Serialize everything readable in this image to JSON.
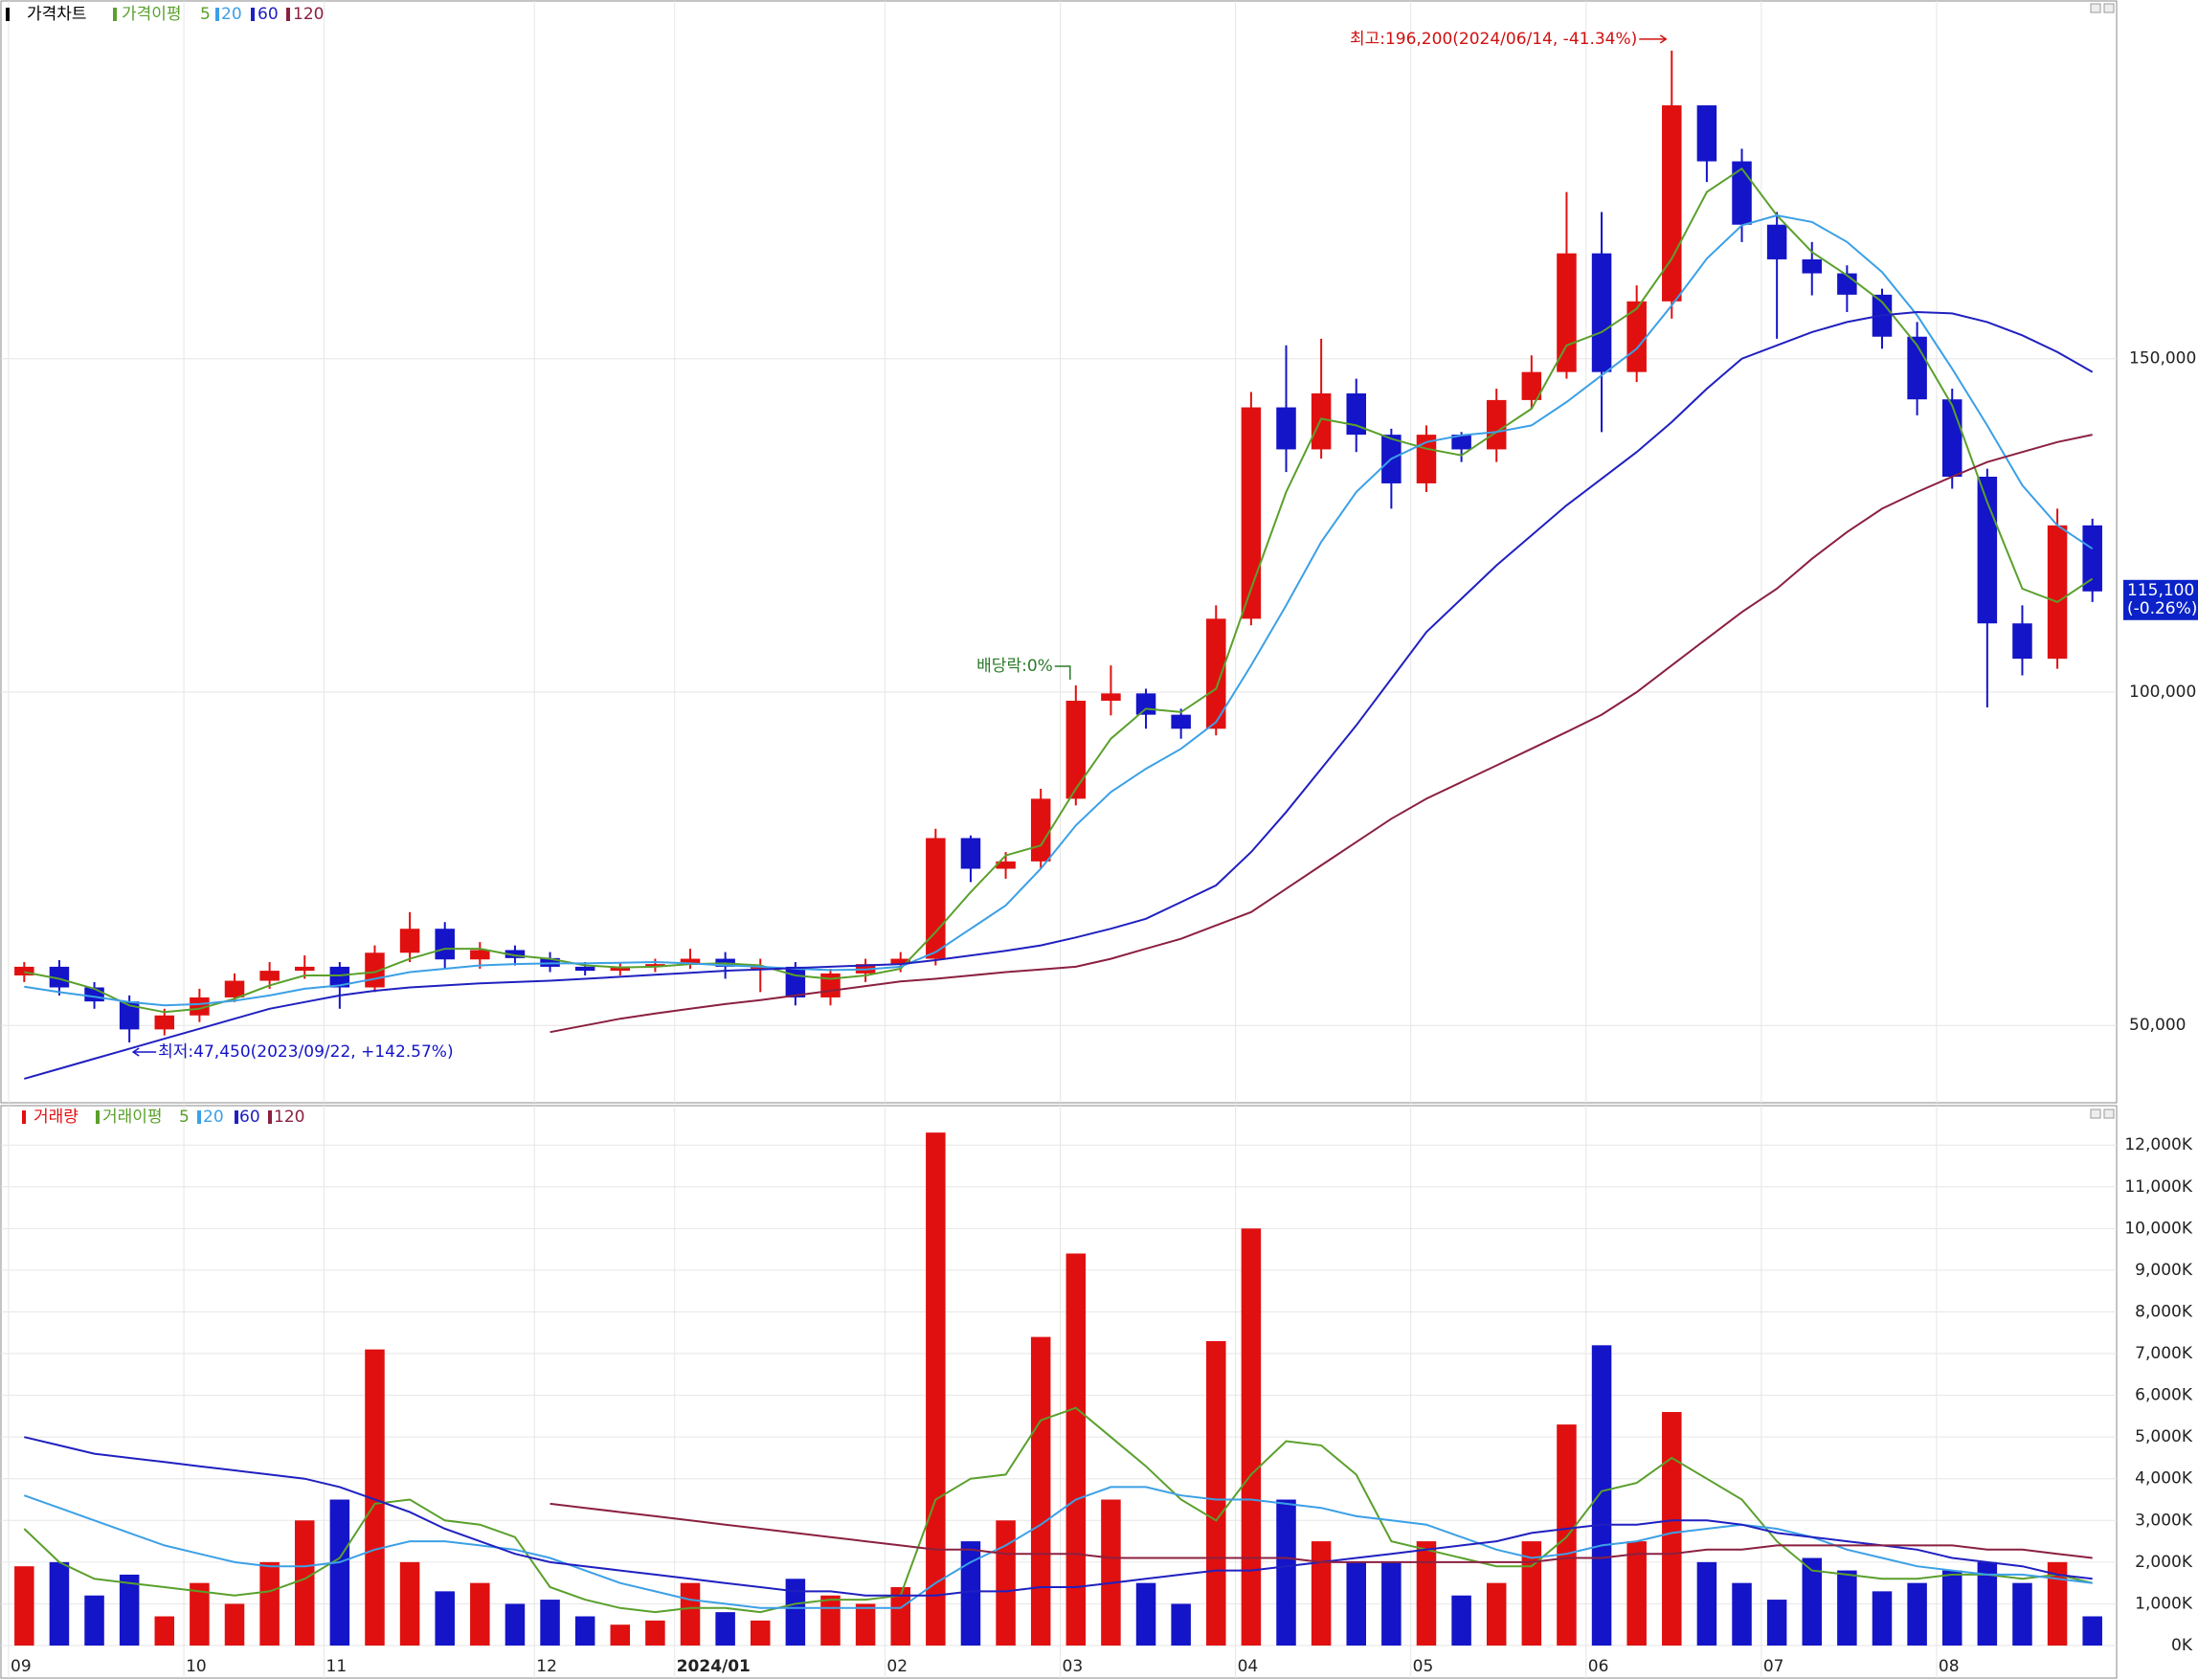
{
  "chart_data": [
    {
      "type": "candlestick",
      "title": "가격차트",
      "ma_label": "가격이평",
      "up_color": "#e01010",
      "down_color": "#1414c8",
      "categories": [
        "09",
        null,
        null,
        null,
        null,
        "10",
        null,
        null,
        null,
        "11",
        null,
        null,
        null,
        null,
        null,
        "12",
        null,
        null,
        null,
        "2024/01",
        null,
        null,
        null,
        null,
        null,
        "02",
        null,
        null,
        null,
        null,
        "03",
        null,
        null,
        null,
        null,
        "04",
        null,
        null,
        null,
        null,
        "05",
        null,
        null,
        null,
        null,
        "06",
        null,
        null,
        null,
        null,
        "07",
        null,
        null,
        null,
        null,
        "08",
        null,
        null,
        null,
        null
      ],
      "open": [
        57500,
        58800,
        55700,
        53600,
        49400,
        51500,
        54200,
        56700,
        58200,
        58800,
        55700,
        60900,
        64500,
        59900,
        61300,
        60100,
        58800,
        58200,
        58800,
        59200,
        60000,
        58800,
        58800,
        54200,
        57800,
        59200,
        60000,
        78100,
        73500,
        74600,
        84000,
        98700,
        99800,
        96600,
        94500,
        111000,
        142700,
        136400,
        144800,
        138600,
        131300,
        138600,
        136400,
        143800,
        148000,
        165800,
        148000,
        158600,
        188000,
        179600,
        170100,
        164900,
        162800,
        159600,
        153300,
        143900,
        132300,
        110300,
        105000,
        125000
      ],
      "high": [
        59500,
        59800,
        56500,
        54500,
        52500,
        55500,
        57800,
        59500,
        60500,
        59500,
        62000,
        67000,
        65500,
        62500,
        62000,
        61000,
        59500,
        59500,
        60000,
        61500,
        61000,
        60000,
        59500,
        58500,
        60000,
        61000,
        79500,
        78500,
        76000,
        85500,
        101000,
        104000,
        100500,
        97500,
        113000,
        145000,
        152000,
        153000,
        147000,
        139500,
        140000,
        139000,
        145500,
        150500,
        175000,
        172000,
        161000,
        196200,
        188000,
        181500,
        172000,
        167500,
        164000,
        160500,
        155500,
        145500,
        133500,
        113000,
        127500,
        126000
      ],
      "low": [
        56500,
        54500,
        52500,
        47450,
        48500,
        50500,
        53500,
        55500,
        57000,
        52500,
        55000,
        59500,
        58500,
        58500,
        59000,
        58000,
        57500,
        57500,
        58000,
        58500,
        57000,
        55000,
        53000,
        53000,
        56500,
        58000,
        59000,
        71500,
        72000,
        73500,
        83000,
        96500,
        94500,
        93000,
        93500,
        110000,
        133000,
        135000,
        136000,
        127500,
        130000,
        134500,
        134500,
        142500,
        147000,
        139000,
        146500,
        156000,
        176500,
        167500,
        153000,
        159500,
        157000,
        151500,
        141500,
        130500,
        97700,
        102500,
        103500,
        113500
      ],
      "close": [
        58800,
        55700,
        53600,
        49400,
        51500,
        54200,
        56700,
        58200,
        58800,
        55700,
        60900,
        64500,
        59900,
        61300,
        60100,
        58800,
        58200,
        58800,
        59200,
        60000,
        58800,
        58800,
        54200,
        57800,
        59200,
        60000,
        78100,
        73500,
        74600,
        84000,
        98700,
        99800,
        96600,
        94500,
        111000,
        142700,
        136400,
        144800,
        138600,
        131300,
        138600,
        136400,
        143800,
        148000,
        165800,
        148000,
        158600,
        188000,
        179600,
        170100,
        164900,
        162800,
        159600,
        153300,
        143900,
        132300,
        110300,
        105000,
        125000,
        115100
      ],
      "series": [
        {
          "name": "5",
          "color": "#5aa02c",
          "values": [
            58000,
            57000,
            55500,
            53000,
            52000,
            52500,
            54000,
            56000,
            57500,
            57500,
            58000,
            60000,
            61500,
            61500,
            60500,
            60000,
            59000,
            58700,
            58800,
            59200,
            59300,
            59000,
            57500,
            57000,
            57500,
            58500,
            64000,
            70000,
            75500,
            77000,
            85500,
            93000,
            97500,
            97000,
            100500,
            115500,
            130000,
            141000,
            140000,
            138000,
            136500,
            135500,
            139000,
            142500,
            152000,
            154000,
            157500,
            165000,
            175000,
            178500,
            171500,
            166000,
            162500,
            158500,
            152000,
            143000,
            128500,
            115500,
            113500,
            117000
          ]
        },
        {
          "name": "20",
          "color": "#3ca0e6",
          "values": [
            55800,
            55000,
            54300,
            53500,
            53000,
            53200,
            53700,
            54500,
            55500,
            56000,
            57000,
            58000,
            58500,
            59000,
            59200,
            59300,
            59300,
            59400,
            59500,
            59300,
            59000,
            58800,
            58500,
            58300,
            58400,
            58800,
            61000,
            64500,
            68000,
            73500,
            80000,
            85000,
            88500,
            91500,
            95500,
            104000,
            113000,
            122500,
            130000,
            135000,
            137500,
            138500,
            139000,
            140000,
            143500,
            147500,
            151500,
            158000,
            165000,
            170000,
            171500,
            170500,
            167500,
            163000,
            156500,
            148500,
            140000,
            131000,
            125000,
            121500
          ]
        },
        {
          "name": "60",
          "color": "#2020c0",
          "values": [
            42000,
            43500,
            45000,
            46500,
            48000,
            49500,
            51000,
            52500,
            53500,
            54500,
            55200,
            55700,
            56000,
            56300,
            56500,
            56700,
            57000,
            57300,
            57600,
            57900,
            58200,
            58400,
            58600,
            58800,
            59000,
            59200,
            59800,
            60500,
            61200,
            62000,
            63200,
            64500,
            66000,
            68500,
            71000,
            76000,
            82000,
            88500,
            95000,
            102000,
            109000,
            114000,
            119000,
            123500,
            128000,
            132000,
            136000,
            140500,
            145500,
            150000,
            152000,
            154000,
            155500,
            156500,
            157000,
            156800,
            155500,
            153500,
            151000,
            148000
          ]
        },
        {
          "name": "120",
          "color": "#8b2040",
          "values": [
            null,
            null,
            null,
            null,
            null,
            null,
            null,
            null,
            null,
            null,
            null,
            null,
            null,
            null,
            null,
            49000,
            50000,
            51000,
            51800,
            52500,
            53200,
            53800,
            54500,
            55200,
            55900,
            56600,
            57000,
            57500,
            58000,
            58400,
            58800,
            60000,
            61500,
            63000,
            65000,
            67000,
            70500,
            74000,
            77500,
            81000,
            84000,
            86500,
            89000,
            91500,
            94000,
            96600,
            100000,
            104000,
            108000,
            112000,
            115500,
            120000,
            124000,
            127500,
            130000,
            132300,
            134500,
            136000,
            137500,
            138600
          ]
        }
      ],
      "ylim": [
        38400,
        203800
      ],
      "yticks": [
        {
          "value": 50000,
          "label": "50,000"
        },
        {
          "value": 100000,
          "label": "100,000"
        },
        {
          "value": 150000,
          "label": "150,000"
        }
      ],
      "grid": true,
      "high_note": "최고:196,200(2024/06/14, -41.34%)",
      "low_note": "최저:47,450(2023/09/22, +142.57%)",
      "ex_dividend_note": "배당락:0%",
      "last_price_label": "115,100",
      "last_change_label": "(-0.26%)"
    },
    {
      "type": "bar",
      "title": "거래량",
      "ma_label": "거래이평",
      "up_color": "#e01010",
      "down_color": "#1414c8",
      "values": [
        1900,
        2000,
        1200,
        1700,
        700,
        1500,
        1000,
        2000,
        3000,
        3500,
        7100,
        2000,
        1300,
        1500,
        1000,
        1100,
        700,
        500,
        600,
        1500,
        800,
        600,
        1600,
        1200,
        1000,
        1400,
        12300,
        2500,
        3000,
        7400,
        9400,
        3500,
        1500,
        1000,
        7300,
        10000,
        3500,
        2500,
        2000,
        2000,
        2500,
        1200,
        1500,
        2500,
        5300,
        7200,
        2500,
        5600,
        2000,
        1500,
        1100,
        2100,
        1800,
        1300,
        1500,
        1800,
        2000,
        1500,
        2000,
        700
      ],
      "series": [
        {
          "name": "5",
          "color": "#5aa02c",
          "values": [
            2800,
            2000,
            1600,
            1500,
            1400,
            1300,
            1200,
            1300,
            1600,
            2100,
            3400,
            3500,
            3000,
            2900,
            2600,
            1400,
            1100,
            900,
            800,
            900,
            900,
            800,
            1000,
            1100,
            1100,
            1200,
            3500,
            4000,
            4100,
            5400,
            5700,
            5000,
            4300,
            3500,
            3000,
            4100,
            4900,
            4800,
            4100,
            2500,
            2300,
            2100,
            1900,
            1900,
            2600,
            3700,
            3900,
            4500,
            4000,
            3500,
            2500,
            1800,
            1700,
            1600,
            1600,
            1700,
            1700,
            1600,
            1700,
            1500
          ]
        },
        {
          "name": "20",
          "color": "#3ca0e6",
          "values": [
            3600,
            3300,
            3000,
            2700,
            2400,
            2200,
            2000,
            1900,
            1900,
            2000,
            2300,
            2500,
            2500,
            2400,
            2300,
            2100,
            1800,
            1500,
            1300,
            1100,
            1000,
            900,
            900,
            900,
            900,
            900,
            1500,
            2000,
            2400,
            2900,
            3500,
            3800,
            3800,
            3600,
            3500,
            3500,
            3400,
            3300,
            3100,
            3000,
            2900,
            2600,
            2300,
            2100,
            2200,
            2400,
            2500,
            2700,
            2800,
            2900,
            2800,
            2600,
            2300,
            2100,
            1900,
            1800,
            1700,
            1700,
            1600,
            1500
          ]
        },
        {
          "name": "60",
          "color": "#2020c0",
          "values": [
            5000,
            4800,
            4600,
            4500,
            4400,
            4300,
            4200,
            4100,
            4000,
            3800,
            3500,
            3200,
            2800,
            2500,
            2200,
            2000,
            1900,
            1800,
            1700,
            1600,
            1500,
            1400,
            1300,
            1300,
            1200,
            1200,
            1200,
            1300,
            1300,
            1400,
            1400,
            1500,
            1600,
            1700,
            1800,
            1800,
            1900,
            2000,
            2100,
            2200,
            2300,
            2400,
            2500,
            2700,
            2800,
            2900,
            2900,
            3000,
            3000,
            2900,
            2700,
            2600,
            2500,
            2400,
            2300,
            2100,
            2000,
            1900,
            1700,
            1600
          ]
        },
        {
          "name": "120",
          "color": "#8b2040",
          "values": [
            null,
            null,
            null,
            null,
            null,
            null,
            null,
            null,
            null,
            null,
            null,
            null,
            null,
            null,
            null,
            3400,
            3300,
            3200,
            3100,
            3000,
            2900,
            2800,
            2700,
            2600,
            2500,
            2400,
            2300,
            2300,
            2200,
            2200,
            2200,
            2100,
            2100,
            2100,
            2100,
            2100,
            2100,
            2000,
            2000,
            2000,
            2000,
            2000,
            2000,
            2000,
            2100,
            2100,
            2200,
            2200,
            2300,
            2300,
            2400,
            2400,
            2400,
            2400,
            2400,
            2400,
            2300,
            2300,
            2200,
            2100
          ]
        }
      ],
      "ylim": [
        0,
        12900
      ],
      "yticks": [
        {
          "value": 0,
          "label": "0K"
        },
        {
          "value": 1000,
          "label": "1,000K"
        },
        {
          "value": 2000,
          "label": "2,000K"
        },
        {
          "value": 3000,
          "label": "3,000K"
        },
        {
          "value": 4000,
          "label": "4,000K"
        },
        {
          "value": 5000,
          "label": "5,000K"
        },
        {
          "value": 6000,
          "label": "6,000K"
        },
        {
          "value": 7000,
          "label": "7,000K"
        },
        {
          "value": 8000,
          "label": "8,000K"
        },
        {
          "value": 9000,
          "label": "9,000K"
        },
        {
          "value": 10000,
          "label": "10,000K"
        },
        {
          "value": 11000,
          "label": "11,000K"
        },
        {
          "value": 12000,
          "label": "12,000K"
        }
      ],
      "grid": true
    }
  ]
}
